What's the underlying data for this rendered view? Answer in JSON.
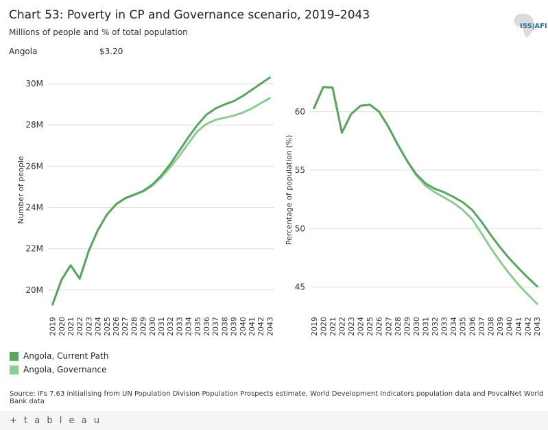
{
  "title": "Chart 53: Poverty in CP and Governance scenario, 2019–2043",
  "subtitle": "Millions of people and % of total population",
  "country": "Angola",
  "threshold": "$3.20",
  "logo_text": "ISS|AFI",
  "colors": {
    "current_path": "#59a55f",
    "governance": "#8fcb8f",
    "grid": "#dddddd",
    "text": "#333333"
  },
  "legend": [
    {
      "label": "Angola,  Current Path",
      "color": "#59a55f"
    },
    {
      "label": "Angola,  Governance",
      "color": "#8fcb8f"
    }
  ],
  "source": "Source: IFs 7.63 initialising from UN Population Division Population Prospects estimate, World Development Indicators population data and PovcalNet World Bank data",
  "footer": "+ t a b l e a u",
  "chart_data": [
    {
      "type": "line",
      "ylabel": "Number of people",
      "ylim": [
        18.9,
        30.8
      ],
      "yticks": [
        20,
        22,
        24,
        26,
        28,
        30
      ],
      "ytick_labels": [
        "20M",
        "22M",
        "24M",
        "26M",
        "28M",
        "30M"
      ],
      "grid": true,
      "x": [
        "2019",
        "2020",
        "2021",
        "2022",
        "2023",
        "2024",
        "2025",
        "2026",
        "2027",
        "2028",
        "2029",
        "2030",
        "2031",
        "2032",
        "2033",
        "2034",
        "2035",
        "2036",
        "2037",
        "2038",
        "2039",
        "2040",
        "2041",
        "2042",
        "2043"
      ],
      "series": [
        {
          "name": "Angola, Current Path",
          "values": [
            19.3,
            20.5,
            21.2,
            20.55,
            21.9,
            22.9,
            23.65,
            24.15,
            24.45,
            24.62,
            24.8,
            25.1,
            25.55,
            26.1,
            26.75,
            27.4,
            28.0,
            28.5,
            28.8,
            29.0,
            29.15,
            29.4,
            29.7,
            30.0,
            30.3
          ]
        },
        {
          "name": "Angola, Governance",
          "values": [
            19.3,
            20.5,
            21.2,
            20.55,
            21.9,
            22.9,
            23.65,
            24.15,
            24.43,
            24.6,
            24.77,
            25.05,
            25.45,
            25.95,
            26.5,
            27.1,
            27.7,
            28.05,
            28.25,
            28.35,
            28.45,
            28.6,
            28.8,
            29.05,
            29.3
          ]
        }
      ]
    },
    {
      "type": "line",
      "ylabel": "Percentage of population (%)",
      "ylim": [
        42.8,
        63.8
      ],
      "yticks": [
        45,
        50,
        55,
        60
      ],
      "ytick_labels": [
        "45",
        "50",
        "55",
        "60"
      ],
      "grid": true,
      "x": [
        "2019",
        "2020",
        "2021",
        "2022",
        "2023",
        "2024",
        "2025",
        "2026",
        "2027",
        "2028",
        "2029",
        "2030",
        "2031",
        "2032",
        "2033",
        "2034",
        "2035",
        "2036",
        "2037",
        "2038",
        "2039",
        "2040",
        "2041",
        "2042",
        "2043"
      ],
      "series": [
        {
          "name": "Angola, Current Path",
          "values": [
            60.3,
            62.1,
            62.05,
            58.2,
            59.8,
            60.5,
            60.6,
            60.0,
            58.7,
            57.2,
            55.8,
            54.65,
            53.85,
            53.4,
            53.1,
            52.7,
            52.25,
            51.6,
            50.6,
            49.45,
            48.4,
            47.45,
            46.6,
            45.8,
            45.05
          ]
        },
        {
          "name": "Angola, Governance",
          "values": [
            60.3,
            62.1,
            62.05,
            58.2,
            59.8,
            60.5,
            60.6,
            60.0,
            58.7,
            57.2,
            55.8,
            54.55,
            53.65,
            53.1,
            52.65,
            52.2,
            51.6,
            50.8,
            49.6,
            48.35,
            47.2,
            46.15,
            45.2,
            44.35,
            43.55
          ]
        }
      ]
    }
  ]
}
